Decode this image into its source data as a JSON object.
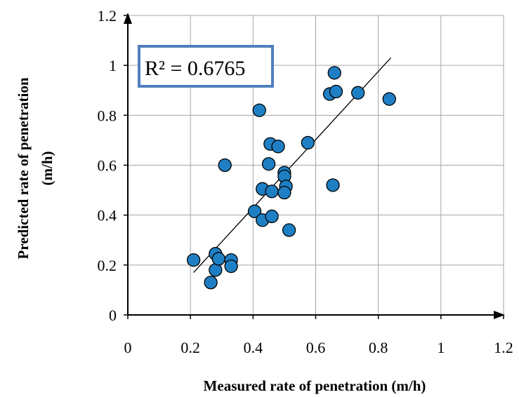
{
  "chart_data": {
    "type": "scatter",
    "xlabel": "Measured rate of penetration (m/h)",
    "ylabel_line1": "Predicted  rate of penetration",
    "ylabel_line2": "(m/h)",
    "xlim": [
      0,
      1.2
    ],
    "ylim": [
      0,
      1.2
    ],
    "x_ticks": [
      0,
      0.2,
      0.4,
      0.6,
      0.8,
      1,
      1.2
    ],
    "x_tick_labels": [
      "0",
      "0.2",
      "0.4",
      "0.6",
      "0.8",
      "1",
      "1.2"
    ],
    "y_ticks": [
      0,
      0.2,
      0.4,
      0.6,
      0.8,
      1,
      1.2
    ],
    "y_tick_labels": [
      "0",
      "0.2",
      "0.4",
      "0.6",
      "0.8",
      "1",
      "1.2"
    ],
    "grid": true,
    "annotation": "R² = 0.6765",
    "marker_color": "#1f7fc4",
    "marker_edge_color": "#000000",
    "trendline": {
      "x": [
        0.21,
        0.84
      ],
      "y": [
        0.17,
        1.03
      ],
      "color": "#000000"
    },
    "points": [
      {
        "x": 0.21,
        "y": 0.22
      },
      {
        "x": 0.265,
        "y": 0.13
      },
      {
        "x": 0.28,
        "y": 0.18
      },
      {
        "x": 0.28,
        "y": 0.245
      },
      {
        "x": 0.29,
        "y": 0.225
      },
      {
        "x": 0.33,
        "y": 0.22
      },
      {
        "x": 0.33,
        "y": 0.195
      },
      {
        "x": 0.31,
        "y": 0.6
      },
      {
        "x": 0.405,
        "y": 0.415
      },
      {
        "x": 0.42,
        "y": 0.82
      },
      {
        "x": 0.43,
        "y": 0.505
      },
      {
        "x": 0.43,
        "y": 0.38
      },
      {
        "x": 0.45,
        "y": 0.605
      },
      {
        "x": 0.455,
        "y": 0.685
      },
      {
        "x": 0.46,
        "y": 0.495
      },
      {
        "x": 0.46,
        "y": 0.395
      },
      {
        "x": 0.48,
        "y": 0.675
      },
      {
        "x": 0.5,
        "y": 0.57
      },
      {
        "x": 0.5,
        "y": 0.555
      },
      {
        "x": 0.505,
        "y": 0.515
      },
      {
        "x": 0.5,
        "y": 0.49
      },
      {
        "x": 0.515,
        "y": 0.34
      },
      {
        "x": 0.575,
        "y": 0.69
      },
      {
        "x": 0.645,
        "y": 0.885
      },
      {
        "x": 0.655,
        "y": 0.52
      },
      {
        "x": 0.66,
        "y": 0.97
      },
      {
        "x": 0.665,
        "y": 0.895
      },
      {
        "x": 0.735,
        "y": 0.89
      },
      {
        "x": 0.835,
        "y": 0.865
      }
    ]
  }
}
